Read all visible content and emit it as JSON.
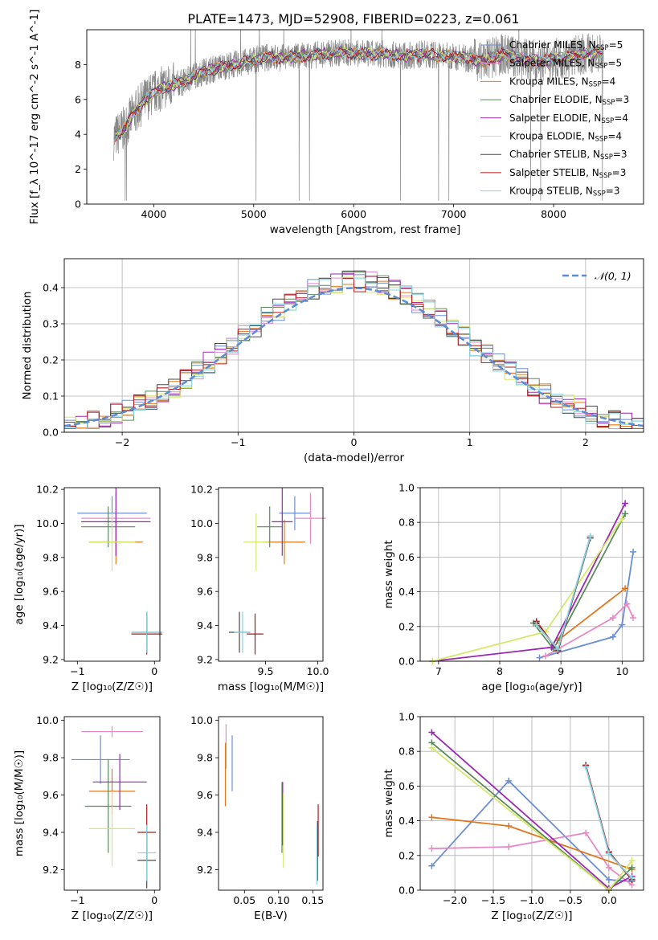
{
  "figure_title": "PLATE=1473, MJD=52908, FIBERID=0223, z=0.061",
  "colors": {
    "chabrier_miles": "#6b8ed6",
    "salpeter_miles": "#e58ac5",
    "kroupa_miles": "#e0781f",
    "chabrier_elodie": "#5a8a5a",
    "salpeter_elodie": "#9a28b4",
    "kroupa_elodie": "#d5e86a",
    "chabrier_stelib": "#4a4a4a",
    "salpeter_stelib": "#b01818",
    "kroupa_stelib": "#86d4e6",
    "spectrum": "#888888",
    "normal": "#5b8bd6"
  },
  "chart_data": [
    {
      "id": "spectrum",
      "type": "line",
      "title": "PLATE=1473, MJD=52908, FIBERID=0223, z=0.061",
      "xlabel": "wavelength [Angstrom, rest frame]",
      "ylabel": "Flux [f_λ 10^-17 erg cm^-2 s^-1 A^-1]",
      "xlim": [
        3330,
        8900
      ],
      "ylim": [
        0,
        10
      ],
      "xticks": [
        "4000",
        "5000",
        "6000",
        "7000",
        "8000"
      ],
      "yticks": [
        "0",
        "2",
        "4",
        "6",
        "8"
      ],
      "legend_position": "right",
      "continuum": [
        [
          3600,
          3.8
        ],
        [
          3700,
          4.3
        ],
        [
          3800,
          5.2
        ],
        [
          3900,
          5.9
        ],
        [
          4000,
          6.4
        ],
        [
          4100,
          6.7
        ],
        [
          4300,
          7.0
        ],
        [
          4500,
          7.6
        ],
        [
          4700,
          7.9
        ],
        [
          4900,
          8.1
        ],
        [
          5100,
          8.4
        ],
        [
          5300,
          8.4
        ],
        [
          5500,
          8.5
        ],
        [
          5700,
          8.6
        ],
        [
          5900,
          8.7
        ],
        [
          6100,
          8.6
        ],
        [
          6300,
          8.6
        ],
        [
          6500,
          8.5
        ],
        [
          6700,
          8.6
        ],
        [
          6900,
          8.5
        ],
        [
          7100,
          8.4
        ],
        [
          7300,
          8.2
        ],
        [
          7500,
          8.6
        ],
        [
          7700,
          8.3
        ],
        [
          7900,
          8.2
        ],
        [
          8100,
          8.4
        ],
        [
          8300,
          8.6
        ],
        [
          8500,
          8.7
        ]
      ],
      "series": [
        {
          "label": "Chabrier MILES, N",
          "sub": "SSP",
          "n": "=5",
          "color": "chabrier_miles"
        },
        {
          "label": "Salpeter MILES, N",
          "sub": "SSP",
          "n": "=5",
          "color": "salpeter_miles"
        },
        {
          "label": "Kroupa MILES, N",
          "sub": "SSP",
          "n": "=4",
          "color": "kroupa_miles"
        },
        {
          "label": "Chabrier ELODIE, N",
          "sub": "SSP",
          "n": "=3",
          "color": "chabrier_elodie"
        },
        {
          "label": "Salpeter ELODIE, N",
          "sub": "SSP",
          "n": "=4",
          "color": "salpeter_elodie"
        },
        {
          "label": "Kroupa ELODIE, N",
          "sub": "SSP",
          "n": "=4",
          "color": "kroupa_elodie"
        },
        {
          "label": "Chabrier STELIB, N",
          "sub": "SSP",
          "n": "=3",
          "color": "chabrier_stelib"
        },
        {
          "label": "Salpeter STELIB, N",
          "sub": "SSP",
          "n": "=3",
          "color": "salpeter_stelib"
        },
        {
          "label": "Kroupa STELIB, N",
          "sub": "SSP",
          "n": "=3",
          "color": "kroupa_stelib"
        }
      ]
    },
    {
      "id": "residuals",
      "type": "histogram",
      "xlabel": "(data-model)/error",
      "ylabel": "Normed distribution",
      "xlim": [
        -2.5,
        2.5
      ],
      "ylim": [
        0,
        0.48
      ],
      "xticks": [
        "−2",
        "−1",
        "0",
        "1",
        "2"
      ],
      "yticks": [
        "0.0",
        "0.1",
        "0.2",
        "0.3",
        "0.4"
      ],
      "legend_label": "𝒩(0, 1)",
      "legend_position": "top-right",
      "bin_width": 0.1,
      "grid": true
    },
    {
      "id": "age_vs_Z",
      "type": "errorbar",
      "xlabel": "Z [log₁₀(Z/Z☉)]",
      "ylabel": "age  [log₁₀(age/yr)]",
      "xlim": [
        -1.17,
        0.07
      ],
      "ylim": [
        9.19,
        10.21
      ],
      "xticks": [
        "−1",
        "0"
      ],
      "yticks": [
        "9.2",
        "9.4",
        "9.6",
        "9.8",
        "10.0",
        "10.2"
      ],
      "points": [
        {
          "x": -0.55,
          "xerr": 0.45,
          "y": 10.06,
          "yerr": 0.1,
          "color": "chabrier_miles"
        },
        {
          "x": -0.5,
          "xerr": 0.45,
          "y": 10.03,
          "yerr": 0.15,
          "color": "salpeter_miles"
        },
        {
          "x": -0.5,
          "xerr": 0.35,
          "y": 9.89,
          "yerr": 0.13,
          "color": "kroupa_miles"
        },
        {
          "x": -0.6,
          "xerr": 0.35,
          "y": 9.98,
          "yerr": 0.12,
          "color": "chabrier_elodie"
        },
        {
          "x": -0.5,
          "xerr": 0.45,
          "y": 10.01,
          "yerr": 0.2,
          "color": "salpeter_elodie"
        },
        {
          "x": -0.55,
          "xerr": 0.3,
          "y": 9.89,
          "yerr": 0.17,
          "color": "kroupa_elodie"
        },
        {
          "x": -0.1,
          "xerr": 0.2,
          "y": 9.36,
          "yerr": 0.12,
          "color": "chabrier_stelib"
        },
        {
          "x": -0.1,
          "xerr": 0.2,
          "y": 9.35,
          "yerr": 0.12,
          "color": "salpeter_stelib"
        },
        {
          "x": -0.1,
          "xerr": 0.2,
          "y": 9.36,
          "yerr": 0.12,
          "color": "kroupa_stelib"
        }
      ]
    },
    {
      "id": "age_vs_mass",
      "type": "errorbar",
      "xlabel": "mass [log₁₀(M/M☉)]",
      "ylabel": "",
      "xlim": [
        9.05,
        10.05
      ],
      "ylim": [
        9.19,
        10.21
      ],
      "xticks": [
        "9.5",
        "10.0"
      ],
      "yticks": [
        "9.2",
        "9.4",
        "9.6",
        "9.8",
        "10.0",
        "10.2"
      ],
      "points": [
        {
          "x": 9.78,
          "xerr": 0.15,
          "y": 10.06,
          "yerr": 0.1,
          "color": "chabrier_miles"
        },
        {
          "x": 9.93,
          "xerr": 0.15,
          "y": 10.03,
          "yerr": 0.15,
          "color": "salpeter_miles"
        },
        {
          "x": 9.68,
          "xerr": 0.2,
          "y": 9.89,
          "yerr": 0.13,
          "color": "kroupa_miles"
        },
        {
          "x": 9.54,
          "xerr": 0.12,
          "y": 9.98,
          "yerr": 0.12,
          "color": "chabrier_elodie"
        },
        {
          "x": 9.66,
          "xerr": 0.1,
          "y": 10.01,
          "yerr": 0.2,
          "color": "salpeter_elodie"
        },
        {
          "x": 9.41,
          "xerr": 0.12,
          "y": 9.89,
          "yerr": 0.17,
          "color": "kroupa_elodie"
        },
        {
          "x": 9.25,
          "xerr": 0.1,
          "y": 9.36,
          "yerr": 0.12,
          "color": "chabrier_stelib"
        },
        {
          "x": 9.4,
          "xerr": 0.08,
          "y": 9.35,
          "yerr": 0.12,
          "color": "salpeter_stelib"
        },
        {
          "x": 9.28,
          "xerr": 0.08,
          "y": 9.36,
          "yerr": 0.12,
          "color": "kroupa_stelib"
        }
      ]
    },
    {
      "id": "weight_vs_age",
      "type": "line",
      "xlabel": "age  [log₁₀(age/yr)]",
      "ylabel": "mass weight",
      "xlim": [
        6.7,
        10.35
      ],
      "ylim": [
        0,
        1
      ],
      "xticks": [
        "7",
        "8",
        "9",
        "10"
      ],
      "yticks": [
        "0.0",
        "0.2",
        "0.4",
        "0.6",
        "0.8",
        "1.0"
      ],
      "grid": true,
      "series": [
        {
          "color": "chabrier_miles",
          "x": [
            8.65,
            9.85,
            10.0,
            10.18
          ],
          "y": [
            0.02,
            0.14,
            0.21,
            0.63
          ]
        },
        {
          "color": "salpeter_miles",
          "x": [
            8.75,
            9.85,
            10.08,
            10.18
          ],
          "y": [
            0.03,
            0.25,
            0.33,
            0.25
          ]
        },
        {
          "color": "kroupa_miles",
          "x": [
            8.95,
            10.05
          ],
          "y": [
            0.12,
            0.42
          ]
        },
        {
          "color": "chabrier_elodie",
          "x": [
            8.55,
            8.88,
            10.05
          ],
          "y": [
            0.22,
            0.07,
            0.85
          ]
        },
        {
          "color": "salpeter_elodie",
          "x": [
            6.9,
            8.85,
            10.05
          ],
          "y": [
            0.0,
            0.08,
            0.91
          ]
        },
        {
          "color": "kroupa_elodie",
          "x": [
            6.9,
            8.75,
            10.0
          ],
          "y": [
            0.0,
            0.17,
            0.82
          ]
        },
        {
          "color": "chabrier_stelib",
          "x": [
            8.6,
            8.95,
            9.48
          ],
          "y": [
            0.22,
            0.06,
            0.71
          ]
        },
        {
          "color": "salpeter_stelib",
          "x": [
            8.6,
            8.95,
            9.48
          ],
          "y": [
            0.23,
            0.06,
            0.72
          ]
        },
        {
          "color": "kroupa_stelib",
          "x": [
            8.6,
            8.95,
            9.48
          ],
          "y": [
            0.21,
            0.07,
            0.72
          ]
        }
      ]
    },
    {
      "id": "mass_vs_Z",
      "type": "errorbar",
      "xlabel": "Z [log₁₀(Z/Z☉)]",
      "ylabel": "mass [log₁₀(M/M☉)]",
      "xlim": [
        -1.17,
        0.07
      ],
      "ylim": [
        9.09,
        10.02
      ],
      "xticks": [
        "−1",
        "0"
      ],
      "yticks": [
        "9.2",
        "9.4",
        "9.6",
        "9.8",
        "10.0"
      ],
      "points": [
        {
          "x": -0.7,
          "xerr": 0.38,
          "y": 9.79,
          "yerr": 0.13,
          "color": "chabrier_miles"
        },
        {
          "x": -0.55,
          "xerr": 0.4,
          "y": 9.94,
          "yerr": 0.03,
          "color": "salpeter_miles"
        },
        {
          "x": -0.55,
          "xerr": 0.3,
          "y": 9.62,
          "yerr": 0.12,
          "color": "kroupa_miles"
        },
        {
          "x": -0.6,
          "xerr": 0.3,
          "y": 9.54,
          "yerr": 0.25,
          "color": "chabrier_elodie"
        },
        {
          "x": -0.45,
          "xerr": 0.35,
          "y": 9.67,
          "yerr": 0.15,
          "color": "salpeter_elodie"
        },
        {
          "x": -0.55,
          "xerr": 0.3,
          "y": 9.42,
          "yerr": 0.2,
          "color": "kroupa_elodie"
        },
        {
          "x": -0.1,
          "xerr": 0.12,
          "y": 9.25,
          "yerr": 0.15,
          "color": "chabrier_stelib"
        },
        {
          "x": -0.1,
          "xerr": 0.12,
          "y": 9.4,
          "yerr": 0.15,
          "color": "salpeter_stelib"
        },
        {
          "x": -0.1,
          "xerr": 0.12,
          "y": 9.29,
          "yerr": 0.15,
          "color": "kroupa_stelib"
        }
      ]
    },
    {
      "id": "mass_vs_ebv",
      "type": "errorbar",
      "xlabel": "E(B-V)",
      "ylabel": "",
      "xlim": [
        0.012,
        0.165
      ],
      "ylim": [
        9.09,
        10.02
      ],
      "xticks": [
        "0.05",
        "0.10",
        "0.15"
      ],
      "yticks": [
        "9.2",
        "9.4",
        "9.6",
        "9.8",
        "10.0"
      ],
      "points": [
        {
          "x": 0.032,
          "xerr": 0,
          "y": 9.77,
          "yerr": 0.15,
          "color": "chabrier_miles"
        },
        {
          "x": 0.023,
          "xerr": 0,
          "y": 9.86,
          "yerr": 0.12,
          "color": "salpeter_miles"
        },
        {
          "x": 0.022,
          "xerr": 0,
          "y": 9.71,
          "yerr": 0.17,
          "color": "kroupa_miles"
        },
        {
          "x": 0.105,
          "xerr": 0,
          "y": 9.48,
          "yerr": 0.19,
          "color": "chabrier_elodie"
        },
        {
          "x": 0.106,
          "xerr": 0,
          "y": 9.5,
          "yerr": 0.17,
          "color": "salpeter_elodie"
        },
        {
          "x": 0.107,
          "xerr": 0,
          "y": 9.41,
          "yerr": 0.2,
          "color": "kroupa_elodie"
        },
        {
          "x": 0.157,
          "xerr": 0,
          "y": 9.3,
          "yerr": 0.16,
          "color": "chabrier_stelib"
        },
        {
          "x": 0.158,
          "xerr": 0,
          "y": 9.41,
          "yerr": 0.14,
          "color": "salpeter_stelib"
        },
        {
          "x": 0.156,
          "xerr": 0,
          "y": 9.28,
          "yerr": 0.16,
          "color": "kroupa_stelib"
        }
      ]
    },
    {
      "id": "weight_vs_Z",
      "type": "line",
      "xlabel": "Z [log₁₀(Z/Z☉)]",
      "ylabel": "mass weight",
      "xlim": [
        -2.45,
        0.45
      ],
      "ylim": [
        0,
        1
      ],
      "xticks": [
        "−2.0",
        "−1.5",
        "−1.0",
        "−0.5",
        "0.0"
      ],
      "yticks": [
        "0.0",
        "0.2",
        "0.4",
        "0.6",
        "0.8",
        "1.0"
      ],
      "grid": true,
      "series": [
        {
          "color": "chabrier_miles",
          "x": [
            -2.3,
            -1.3,
            0.0,
            0.3
          ],
          "y": [
            0.14,
            0.63,
            0.06,
            0.05
          ]
        },
        {
          "color": "salpeter_miles",
          "x": [
            -2.3,
            -1.3,
            -0.3,
            0.0,
            0.3
          ],
          "y": [
            0.24,
            0.25,
            0.33,
            0.13,
            0.03
          ]
        },
        {
          "color": "kroupa_miles",
          "x": [
            -2.3,
            -1.3,
            0.3
          ],
          "y": [
            0.42,
            0.37,
            0.12
          ]
        },
        {
          "color": "chabrier_elodie",
          "x": [
            -2.3,
            0.0,
            0.3
          ],
          "y": [
            0.85,
            0.0,
            0.13
          ]
        },
        {
          "color": "salpeter_elodie",
          "x": [
            -2.3,
            0.0,
            0.3
          ],
          "y": [
            0.91,
            0.01,
            0.08
          ]
        },
        {
          "color": "kroupa_elodie",
          "x": [
            -2.3,
            0.0,
            0.3
          ],
          "y": [
            0.82,
            0.0,
            0.17
          ]
        },
        {
          "color": "chabrier_stelib",
          "x": [
            -0.3,
            0.0,
            0.3
          ],
          "y": [
            0.72,
            0.22,
            0.06
          ]
        },
        {
          "color": "salpeter_stelib",
          "x": [
            -0.3,
            0.0,
            0.3
          ],
          "y": [
            0.72,
            0.22,
            0.06
          ]
        },
        {
          "color": "kroupa_stelib",
          "x": [
            -0.3,
            0.0,
            0.3
          ],
          "y": [
            0.71,
            0.21,
            0.07
          ]
        }
      ]
    }
  ]
}
